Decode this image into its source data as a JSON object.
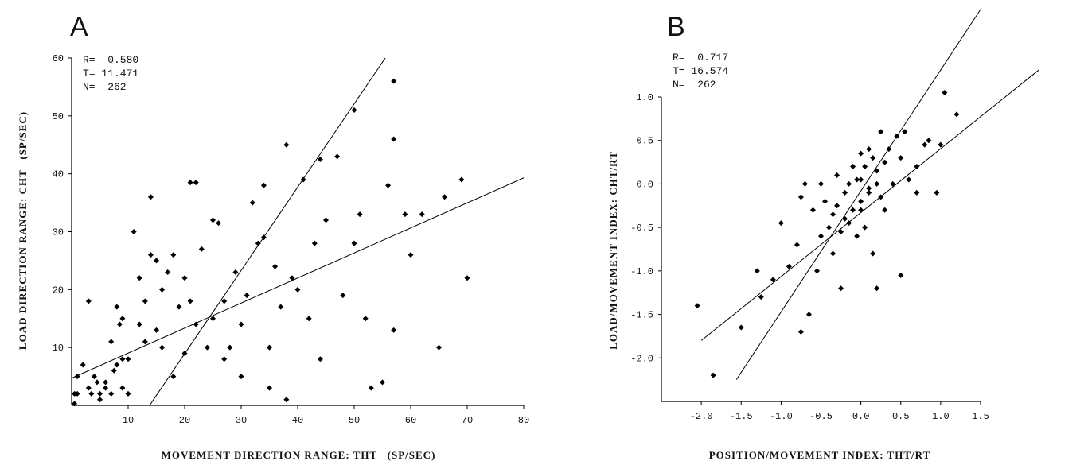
{
  "chart_data": [
    {
      "type": "scatter",
      "panel_label": "A",
      "annotations": [
        "R=  0.580",
        "T= 11.471",
        "N=  262"
      ],
      "x_label": "MOVEMENT DIRECTION RANGE: THT   (SP/SEC)",
      "y_label": "LOAD DIRECTION RANGE: CHT   (SP/SEC)",
      "color": "#000000",
      "xlim": [
        0,
        80
      ],
      "ylim": [
        0,
        60
      ],
      "xticks": [
        10,
        20,
        30,
        40,
        50,
        60,
        70,
        80
      ],
      "yticks": [
        10,
        20,
        30,
        40,
        50,
        60
      ],
      "x": [
        0.5,
        1,
        0.5,
        2,
        1,
        3,
        3,
        4,
        3.5,
        5,
        5,
        4.5,
        6,
        6,
        7,
        7,
        7.5,
        8,
        8,
        8.5,
        9,
        9,
        9,
        10,
        10,
        11,
        12,
        12,
        13,
        13,
        14,
        14,
        15,
        15,
        16,
        16,
        17,
        18,
        18,
        19,
        20,
        20,
        21,
        22,
        21,
        22,
        23,
        24,
        25,
        25,
        26,
        27,
        27,
        28,
        29,
        30,
        30,
        31,
        32,
        33,
        34,
        34,
        35,
        35,
        36,
        37,
        38,
        38,
        39,
        40,
        41,
        42,
        43,
        44,
        44,
        45,
        47,
        48,
        50,
        50,
        51,
        52,
        53,
        55,
        56,
        57,
        57,
        57,
        59,
        60,
        62,
        65,
        66,
        69,
        70
      ],
      "y": [
        0.3,
        2,
        2,
        7,
        5,
        18,
        3,
        5,
        2,
        2,
        1,
        4,
        3,
        4,
        2,
        11,
        6,
        17,
        7,
        14,
        15,
        8,
        3,
        8,
        2,
        30,
        22,
        14,
        11,
        18,
        36,
        26,
        25,
        13,
        10,
        20,
        23,
        26,
        5,
        17,
        9,
        22,
        38.5,
        38.5,
        18,
        14,
        27,
        10,
        15,
        32,
        31.5,
        18,
        8,
        10,
        23,
        14,
        5,
        19,
        35,
        28,
        29,
        38,
        10,
        3,
        24,
        17,
        1,
        45,
        22,
        20,
        39,
        15,
        28,
        42.5,
        8,
        32,
        43,
        19,
        28,
        51,
        33,
        15,
        3,
        4,
        38,
        56,
        46,
        13,
        33,
        26,
        33,
        10,
        36,
        39,
        22
      ],
      "fit_lines": [
        {
          "x": [
            0,
            80
          ],
          "y": [
            4.7,
            39.3
          ]
        },
        {
          "x": [
            13.8,
            55.5
          ],
          "y": [
            0,
            60
          ]
        }
      ]
    },
    {
      "type": "scatter",
      "panel_label": "B",
      "annotations": [
        "R=  0.717",
        "T= 16.574",
        "N=  262"
      ],
      "x_label": "POSITION/MOVEMENT INDEX: THT/RT",
      "y_label": "LOAD/MOVEMENT INDEX: CHT/RT",
      "color": "#000000",
      "xlim": [
        -2.5,
        1.5
      ],
      "ylim": [
        -2.5,
        1.0
      ],
      "xticks": [
        {
          "value": -2.0,
          "label": "-2.0"
        },
        {
          "value": -1.5,
          "label": "-1.5"
        },
        {
          "value": -1.0,
          "label": "-1.0"
        },
        {
          "value": -0.5,
          "label": "-0.5"
        },
        {
          "value": 0,
          "label": "0.0"
        },
        {
          "value": 0.5,
          "label": "0.5"
        },
        {
          "value": 1.0,
          "label": "1.0"
        },
        {
          "value": 1.5,
          "label": "1.5"
        }
      ],
      "yticks": [
        {
          "value": -2.0,
          "label": "-2.0"
        },
        {
          "value": -1.5,
          "label": "-1.5"
        },
        {
          "value": -1.0,
          "label": "-1.0"
        },
        {
          "value": -0.5,
          "label": "-0.5"
        },
        {
          "value": 0,
          "label": "0.0"
        },
        {
          "value": 0.5,
          "label": "0.5"
        },
        {
          "value": 1.0,
          "label": "1.0"
        }
      ],
      "x": [
        -2.05,
        -1.85,
        -1.5,
        -1.3,
        -1.25,
        -1.1,
        -1.0,
        -0.9,
        -0.8,
        -0.75,
        -0.75,
        -0.7,
        -0.65,
        -0.6,
        -0.55,
        -0.5,
        -0.5,
        -0.45,
        -0.4,
        -0.35,
        -0.3,
        -0.3,
        -0.25,
        -0.2,
        -0.2,
        -0.15,
        -0.1,
        -0.1,
        -0.05,
        0.0,
        0.0,
        0.05,
        0.05,
        0.1,
        0.1,
        0.15,
        0.15,
        0.2,
        0.2,
        0.25,
        0.3,
        0.3,
        0.35,
        0.4,
        0.45,
        0.5,
        0.5,
        0.55,
        0.6,
        0.7,
        0.7,
        0.8,
        0.85,
        0.95,
        1.0,
        1.05,
        1.2,
        0.0,
        -0.05,
        0.1,
        -0.15,
        0.2,
        -0.35,
        0.25,
        0.0,
        -0.25
      ],
      "y": [
        -1.4,
        -2.2,
        -1.65,
        -1.0,
        -1.3,
        -1.1,
        -0.45,
        -0.95,
        -0.7,
        -0.15,
        -1.7,
        0.0,
        -1.5,
        -0.3,
        -1.0,
        -0.6,
        0.0,
        -0.2,
        -0.5,
        -0.8,
        -0.25,
        0.1,
        -1.2,
        -0.4,
        -0.1,
        0.0,
        -0.3,
        0.2,
        -0.6,
        0.05,
        -0.2,
        0.2,
        -0.5,
        0.4,
        -0.1,
        0.3,
        -0.8,
        -1.2,
        0.0,
        0.6,
        0.25,
        -0.3,
        0.4,
        0.0,
        0.55,
        0.3,
        -1.05,
        0.6,
        0.05,
        0.2,
        -0.1,
        0.45,
        0.5,
        -0.1,
        0.45,
        1.05,
        0.8,
        -0.3,
        0.05,
        -0.05,
        -0.45,
        0.15,
        -0.35,
        -0.15,
        0.35,
        -0.55
      ],
      "fit_lines": [
        {
          "x": [
            -2.0,
            2.23
          ],
          "y": [
            -1.8,
            1.31
          ]
        },
        {
          "x": [
            -1.56,
            1.51
          ],
          "y": [
            -2.25,
            2.02
          ]
        }
      ]
    }
  ]
}
